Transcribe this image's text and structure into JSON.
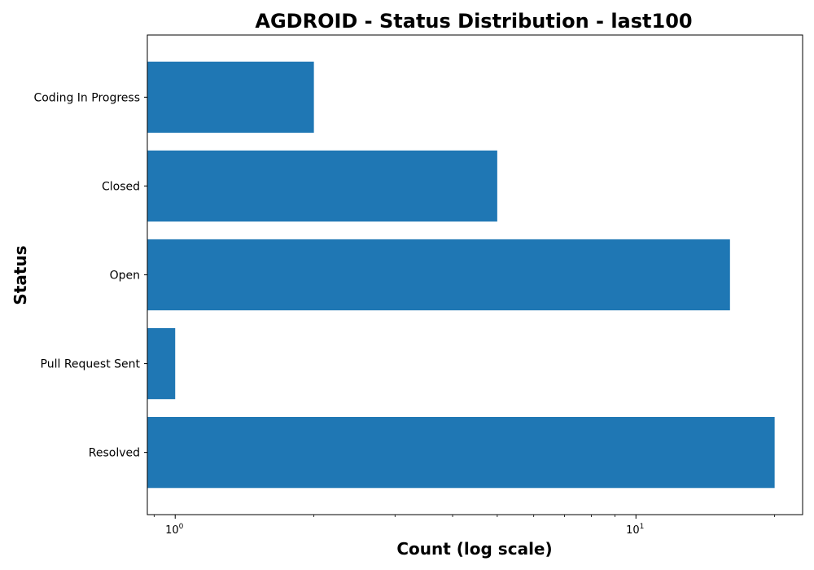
{
  "chart_data": {
    "type": "bar",
    "orientation": "horizontal",
    "title": "AGDROID - Status Distribution - last100",
    "xlabel": "Count (log scale)",
    "ylabel": "Status",
    "x_scale": "log",
    "xlim": [
      0.87,
      23
    ],
    "x_ticks": [
      {
        "value": 1,
        "base": "10",
        "exp": "0"
      },
      {
        "value": 10,
        "base": "10",
        "exp": "1"
      }
    ],
    "categories": [
      "Coding In Progress",
      "Closed",
      "Open",
      "Pull Request Sent",
      "Resolved"
    ],
    "values": [
      2,
      5,
      16,
      1,
      20
    ],
    "bar_color": "#1f77b4",
    "grid": false
  }
}
